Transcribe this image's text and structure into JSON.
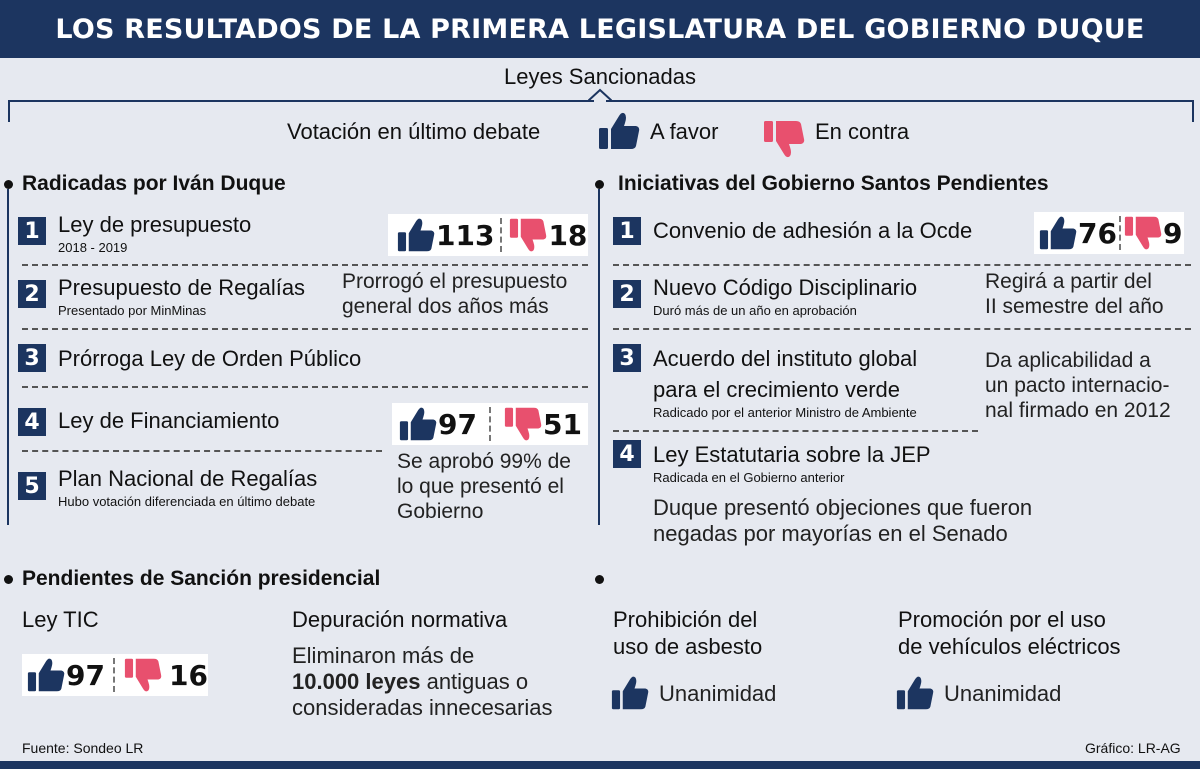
{
  "title": "LOS RESULTADOS DE LA PRIMERA LEGISLATURA DEL GOBIERNO DUQUE",
  "subtitle": "Leyes Sancionadas",
  "legend": {
    "intro": "Votación en último debate",
    "favor": "A favor",
    "contra": "En contra",
    "favor_color": "#1c3560",
    "contra_color": "#e8506e"
  },
  "left": {
    "title": "Radicadas por Iván Duque",
    "items": [
      {
        "n": "1",
        "title": "Ley de presupuesto",
        "sub": "2018 - 2019",
        "favor": "113",
        "contra": "18"
      },
      {
        "n": "2",
        "title": "Presupuesto de Regalías",
        "sub": "Presentado por MinMinas",
        "note1": "Prorrogó el presupuesto",
        "note2": "general dos años más"
      },
      {
        "n": "3",
        "title": "Prórroga Ley de Orden Público"
      },
      {
        "n": "4",
        "title": "Ley de Financiamiento",
        "favor": "97",
        "contra": "51"
      },
      {
        "n": "5",
        "title": "Plan Nacional de Regalías",
        "sub": "Hubo votación diferenciada en último debate",
        "note1": "Se aprobó 99% de",
        "note2": "lo que presentó el",
        "note3": "Gobierno"
      }
    ]
  },
  "right": {
    "title": "Iniciativas del Gobierno Santos Pendientes",
    "items": [
      {
        "n": "1",
        "title": "Convenio de adhesión a la Ocde",
        "favor": "76",
        "contra": "9"
      },
      {
        "n": "2",
        "title": "Nuevo Código Disciplinario",
        "sub": "Duró más de un año en aprobación",
        "note1": "Regirá a partir del",
        "note2": "II semestre del año"
      },
      {
        "n": "3",
        "title1": "Acuerdo del instituto global",
        "title2": "para el crecimiento verde",
        "sub": "Radicado por el anterior Ministro de Ambiente",
        "note1": "Da aplicabilidad a",
        "note2": "un pacto internacio-",
        "note3": "nal firmado en 2012"
      },
      {
        "n": "4",
        "title": "Ley Estatutaria sobre la JEP",
        "sub": "Radicada en el Gobierno anterior",
        "note1": "Duque presentó objeciones que fueron",
        "note2": "negadas por mayorías en el Senado"
      }
    ]
  },
  "pending": {
    "title": "Pendientes de Sanción presidencial",
    "tic": {
      "title": "Ley TIC",
      "favor": "97",
      "contra": "16"
    },
    "depuracion": {
      "title": "Depuración normativa",
      "line1": "Eliminaron más de",
      "line2_bold": "10.000 leyes",
      "line2_rest": " antiguas o",
      "line3": "consideradas innecesarias"
    },
    "asbesto": {
      "title1": "Prohibición del",
      "title2": "uso de asbesto",
      "result": "Unanimidad"
    },
    "electricos": {
      "title1": "Promoción por el uso",
      "title2": "de vehículos eléctricos",
      "result": "Unanimidad"
    }
  },
  "footer": {
    "source": "Fuente: Sondeo LR",
    "credit": "Gráfico: LR-AG"
  }
}
